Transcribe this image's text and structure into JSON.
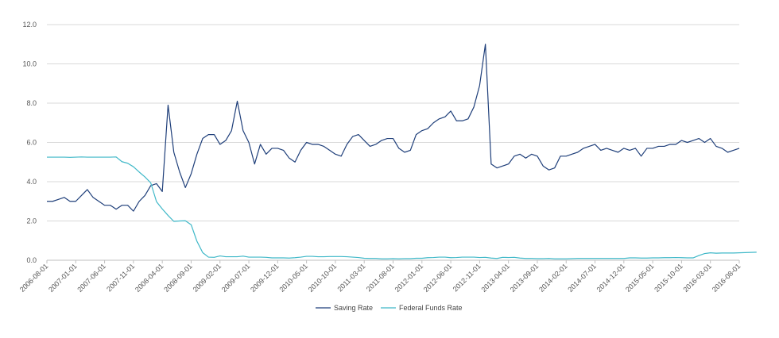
{
  "chart_data": {
    "type": "line",
    "title": "",
    "xlabel": "",
    "ylabel": "",
    "ylim": [
      0,
      12
    ],
    "y_ticks": [
      "0.0",
      "2.0",
      "4.0",
      "6.0",
      "8.0",
      "10.0",
      "12.0"
    ],
    "grid": "horizontal",
    "legend_position": "bottom",
    "x_start": "2006-08",
    "x_tick_labels": [
      "2006-08-01",
      "2007-01-01",
      "2007-06-01",
      "2007-11-01",
      "2008-04-01",
      "2008-09-01",
      "2009-02-01",
      "2009-07-01",
      "2009-12-01",
      "2010-05-01",
      "2010-10-01",
      "2011-03-01",
      "2011-08-01",
      "2012-01-01",
      "2012-06-01",
      "2012-11-01",
      "2013-04-01",
      "2013-09-01",
      "2014-02-01",
      "2014-07-01",
      "2014-12-01",
      "2015-05-01",
      "2015-10-01",
      "2016-03-01",
      "2016-08-01"
    ],
    "series": [
      {
        "name": "Saving Rate",
        "color": "#1f3f7a",
        "values": [
          3.0,
          3.0,
          3.1,
          3.2,
          3.0,
          3.0,
          3.3,
          3.6,
          3.2,
          3.0,
          2.8,
          2.8,
          2.6,
          2.8,
          2.8,
          2.5,
          3.0,
          3.3,
          3.8,
          3.9,
          3.5,
          7.9,
          5.5,
          4.5,
          3.7,
          4.4,
          5.4,
          6.2,
          6.4,
          6.4,
          5.9,
          6.1,
          6.6,
          8.1,
          6.6,
          6.0,
          4.9,
          5.9,
          5.4,
          5.7,
          5.7,
          5.6,
          5.2,
          5.0,
          5.6,
          6.0,
          5.9,
          5.9,
          5.8,
          5.6,
          5.4,
          5.3,
          5.9,
          6.3,
          6.4,
          6.1,
          5.8,
          5.9,
          6.1,
          6.2,
          6.2,
          5.7,
          5.5,
          5.6,
          6.4,
          6.6,
          6.7,
          7.0,
          7.2,
          7.3,
          7.6,
          7.1,
          7.1,
          7.2,
          7.8,
          8.9,
          11.0,
          4.9,
          4.7,
          4.8,
          4.9,
          5.3,
          5.4,
          5.2,
          5.4,
          5.3,
          4.8,
          4.6,
          4.7,
          5.3,
          5.3,
          5.4,
          5.5,
          5.7,
          5.8,
          5.9,
          5.6,
          5.7,
          5.6,
          5.5,
          5.7,
          5.6,
          5.7,
          5.3,
          5.7,
          5.7,
          5.8,
          5.8,
          5.9,
          5.9,
          6.1,
          6.0,
          6.1,
          6.2,
          6.0,
          6.2,
          5.8,
          5.7,
          5.5,
          5.6,
          5.7
        ]
      },
      {
        "name": "Federal Funds Rate",
        "color": "#3fb8c8",
        "values": [
          5.25,
          5.25,
          5.25,
          5.25,
          5.24,
          5.25,
          5.26,
          5.25,
          5.25,
          5.25,
          5.25,
          5.25,
          5.26,
          5.02,
          4.94,
          4.76,
          4.49,
          4.24,
          3.94,
          2.98,
          2.61,
          2.28,
          1.98,
          2.0,
          2.01,
          1.81,
          0.97,
          0.39,
          0.16,
          0.15,
          0.22,
          0.18,
          0.18,
          0.18,
          0.21,
          0.16,
          0.16,
          0.16,
          0.15,
          0.12,
          0.12,
          0.12,
          0.11,
          0.13,
          0.16,
          0.2,
          0.2,
          0.18,
          0.18,
          0.19,
          0.19,
          0.19,
          0.18,
          0.16,
          0.14,
          0.1,
          0.09,
          0.09,
          0.07,
          0.07,
          0.08,
          0.07,
          0.08,
          0.08,
          0.1,
          0.1,
          0.13,
          0.14,
          0.16,
          0.16,
          0.13,
          0.14,
          0.16,
          0.16,
          0.16,
          0.14,
          0.15,
          0.11,
          0.09,
          0.15,
          0.14,
          0.15,
          0.11,
          0.09,
          0.09,
          0.08,
          0.08,
          0.09,
          0.07,
          0.07,
          0.07,
          0.08,
          0.09,
          0.09,
          0.09,
          0.09,
          0.09,
          0.09,
          0.09,
          0.09,
          0.09,
          0.12,
          0.12,
          0.11,
          0.11,
          0.12,
          0.12,
          0.13,
          0.13,
          0.14,
          0.13,
          0.12,
          0.12,
          0.24,
          0.34,
          0.38,
          0.36,
          0.37,
          0.37,
          0.37,
          0.38,
          0.39,
          0.4,
          0.41
        ]
      }
    ]
  }
}
